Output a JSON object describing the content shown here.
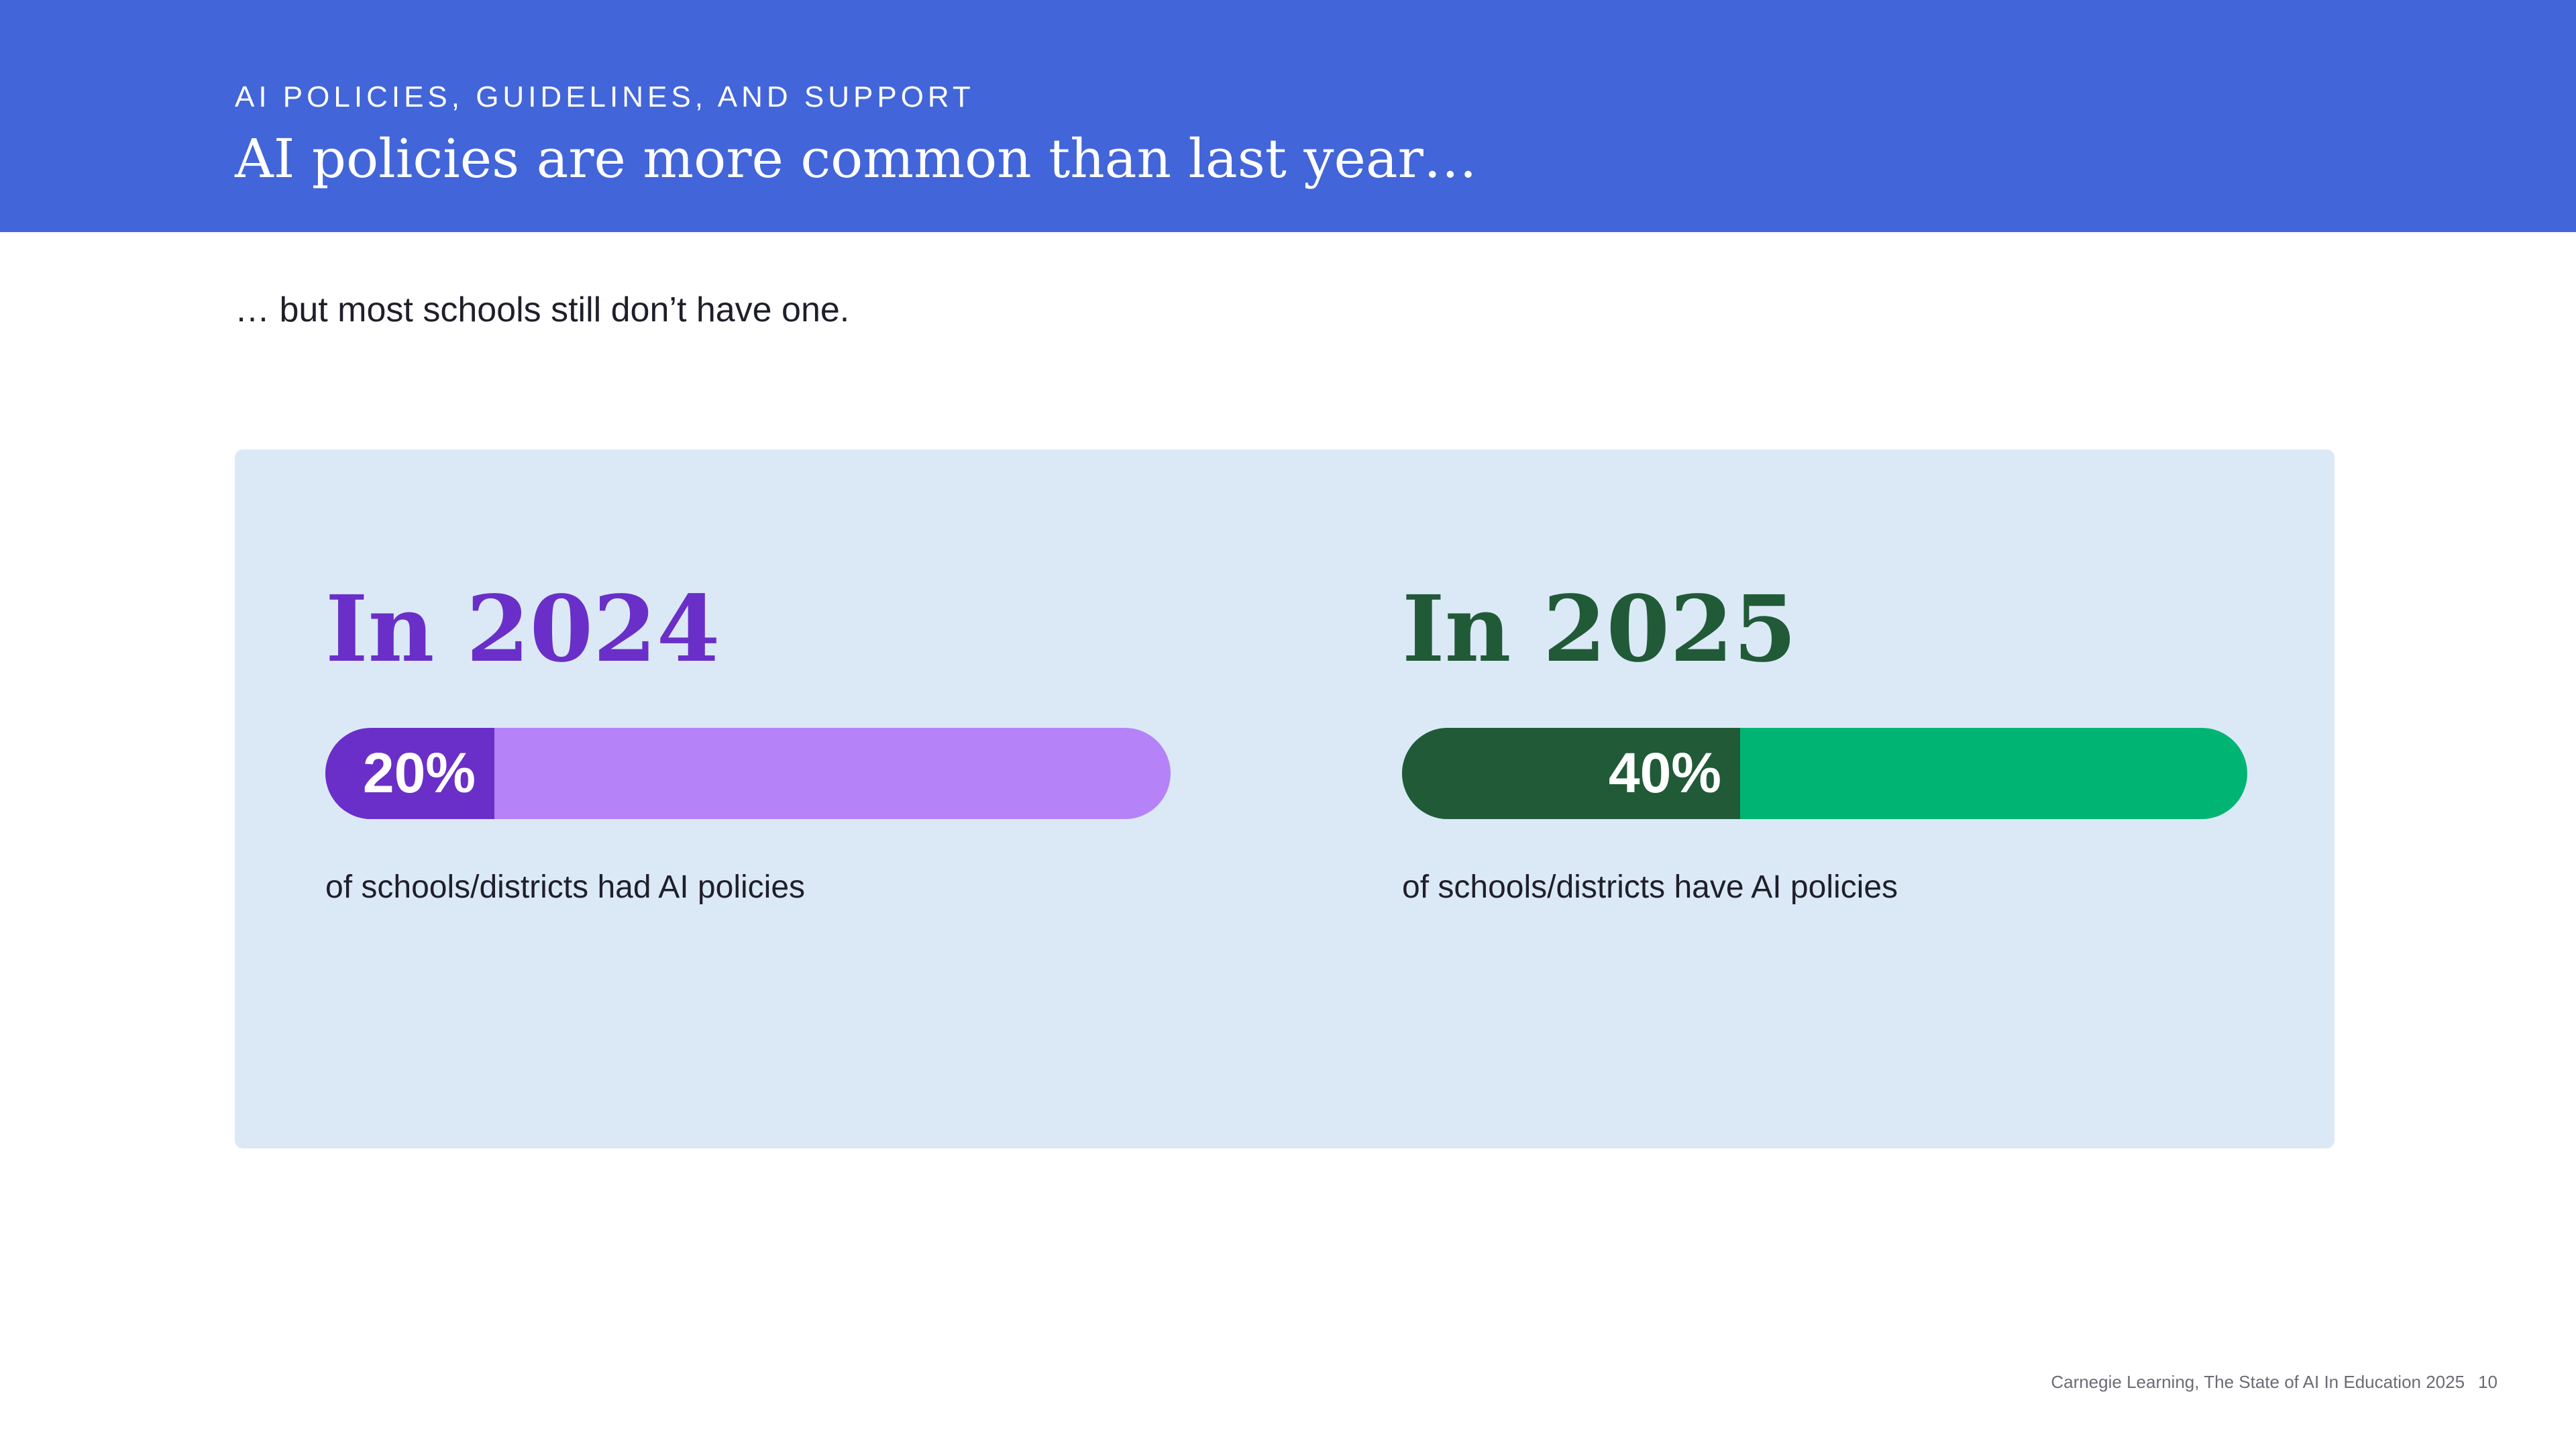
{
  "header": {
    "eyebrow": "AI POLICIES, GUIDELINES, AND SUPPORT",
    "title": "AI policies are more common than last year…",
    "accent_color": "#4265d9"
  },
  "subtitle": "… but most schools still don’t have one.",
  "panel_color": "#dbe9f7",
  "chart_data": {
    "type": "bar",
    "orientation": "horizontal",
    "stacked_progress": true,
    "categories": [
      "In 2024",
      "In 2025"
    ],
    "values": [
      20,
      40
    ],
    "value_labels": [
      "20%",
      "40%"
    ],
    "unit": "%",
    "xlim": [
      0,
      100
    ],
    "descriptions": [
      "of schools/districts had AI policies",
      "of schools/districts have AI policies"
    ],
    "colors": [
      {
        "fill": "#6a2fc8",
        "track": "#b582f7",
        "heading": "#6a2fc8"
      },
      {
        "fill": "#215a37",
        "track": "#00b574",
        "heading": "#215a37"
      }
    ]
  },
  "footer": {
    "source": "Carnegie Learning, The State of AI In Education 2025",
    "page_number": "10"
  }
}
